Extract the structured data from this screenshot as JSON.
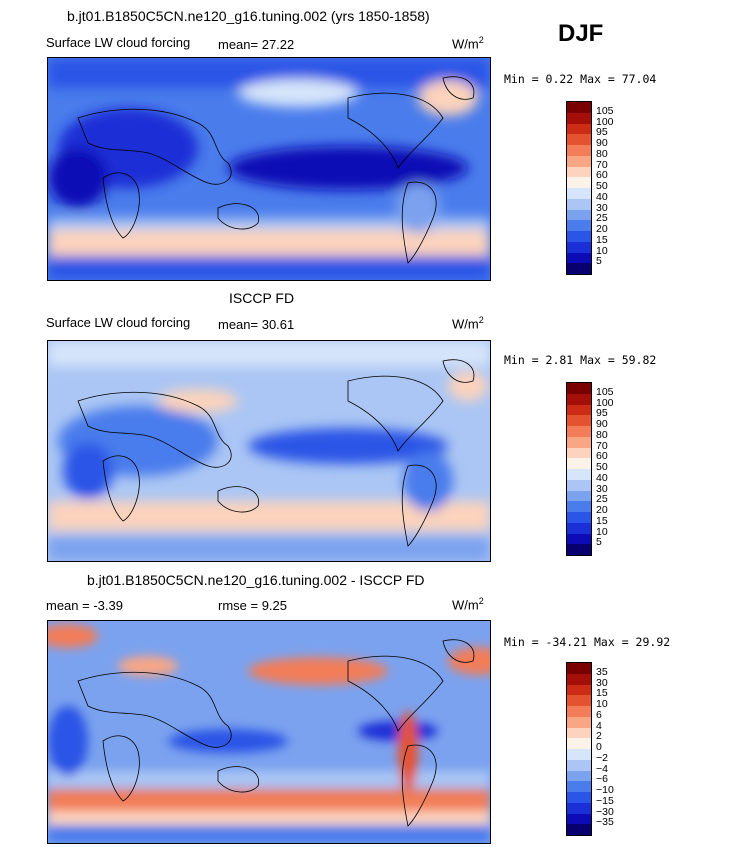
{
  "season": "DJF",
  "colors": [
    "#08006e",
    "#0d0bb5",
    "#1a2fd6",
    "#2a55e6",
    "#4a7cec",
    "#7ba2ef",
    "#abc6f4",
    "#d6e5fa",
    "#fbf3ea",
    "#fcd3bc",
    "#f9a684",
    "#f27d58",
    "#e5522f",
    "#cc2b15",
    "#a50f0a",
    "#780000"
  ],
  "panels": [
    {
      "title": "b.jt01.B1850C5CN.ne120_g16.tuning.002 (yrs 1850-1858)",
      "variable": "Surface LW cloud forcing",
      "stat": "mean=  27.22",
      "units": "W/m",
      "units_exp": "2",
      "range_text": "Min =   0.22 Max =  77.04",
      "cbar_labels": [
        "105",
        "100",
        "95",
        "90",
        "80",
        "70",
        "60",
        "50",
        "40",
        "30",
        "25",
        "20",
        "15",
        "10",
        "5"
      ]
    },
    {
      "title": "ISCCP FD",
      "variable": "Surface LW cloud forcing",
      "stat": "mean=  30.61",
      "units": "W/m",
      "units_exp": "2",
      "range_text": "Min =   2.81 Max =  59.82",
      "cbar_labels": [
        "105",
        "100",
        "95",
        "90",
        "80",
        "70",
        "60",
        "50",
        "40",
        "30",
        "25",
        "20",
        "15",
        "10",
        "5"
      ]
    },
    {
      "title": "b.jt01.B1850C5CN.ne120_g16.tuning.002 - ISCCP FD",
      "variable": "mean =  -3.39",
      "stat": "rmse =   9.25",
      "units": "W/m",
      "units_exp": "2",
      "range_text": "Min = -34.21 Max =  29.92",
      "cbar_labels": [
        "35",
        "30",
        "15",
        "10",
        "6",
        "4",
        "2",
        "0",
        "−2",
        "−4",
        "−6",
        "−10",
        "−15",
        "−30",
        "−35"
      ]
    }
  ],
  "chart_data": [
    {
      "type": "heatmap",
      "title": "b.jt01.B1850C5CN.ne120_g16.tuning.002 (yrs 1850-1858)",
      "subtitle": "Surface LW cloud forcing",
      "units": "W/m2",
      "mean": 27.22,
      "min": 0.22,
      "max": 77.04,
      "contour_levels": [
        5,
        10,
        15,
        20,
        25,
        30,
        40,
        50,
        60,
        70,
        80,
        90,
        95,
        100,
        105
      ]
    },
    {
      "type": "heatmap",
      "title": "ISCCP FD",
      "subtitle": "Surface LW cloud forcing",
      "units": "W/m2",
      "mean": 30.61,
      "min": 2.81,
      "max": 59.82,
      "contour_levels": [
        5,
        10,
        15,
        20,
        25,
        30,
        40,
        50,
        60,
        70,
        80,
        90,
        95,
        100,
        105
      ]
    },
    {
      "type": "heatmap",
      "title": "b.jt01.B1850C5CN.ne120_g16.tuning.002 - ISCCP FD",
      "units": "W/m2",
      "mean": -3.39,
      "rmse": 9.25,
      "min": -34.21,
      "max": 29.92,
      "contour_levels": [
        -35,
        -30,
        -15,
        -10,
        -6,
        -4,
        -2,
        0,
        2,
        4,
        6,
        10,
        15,
        30,
        35
      ]
    }
  ]
}
